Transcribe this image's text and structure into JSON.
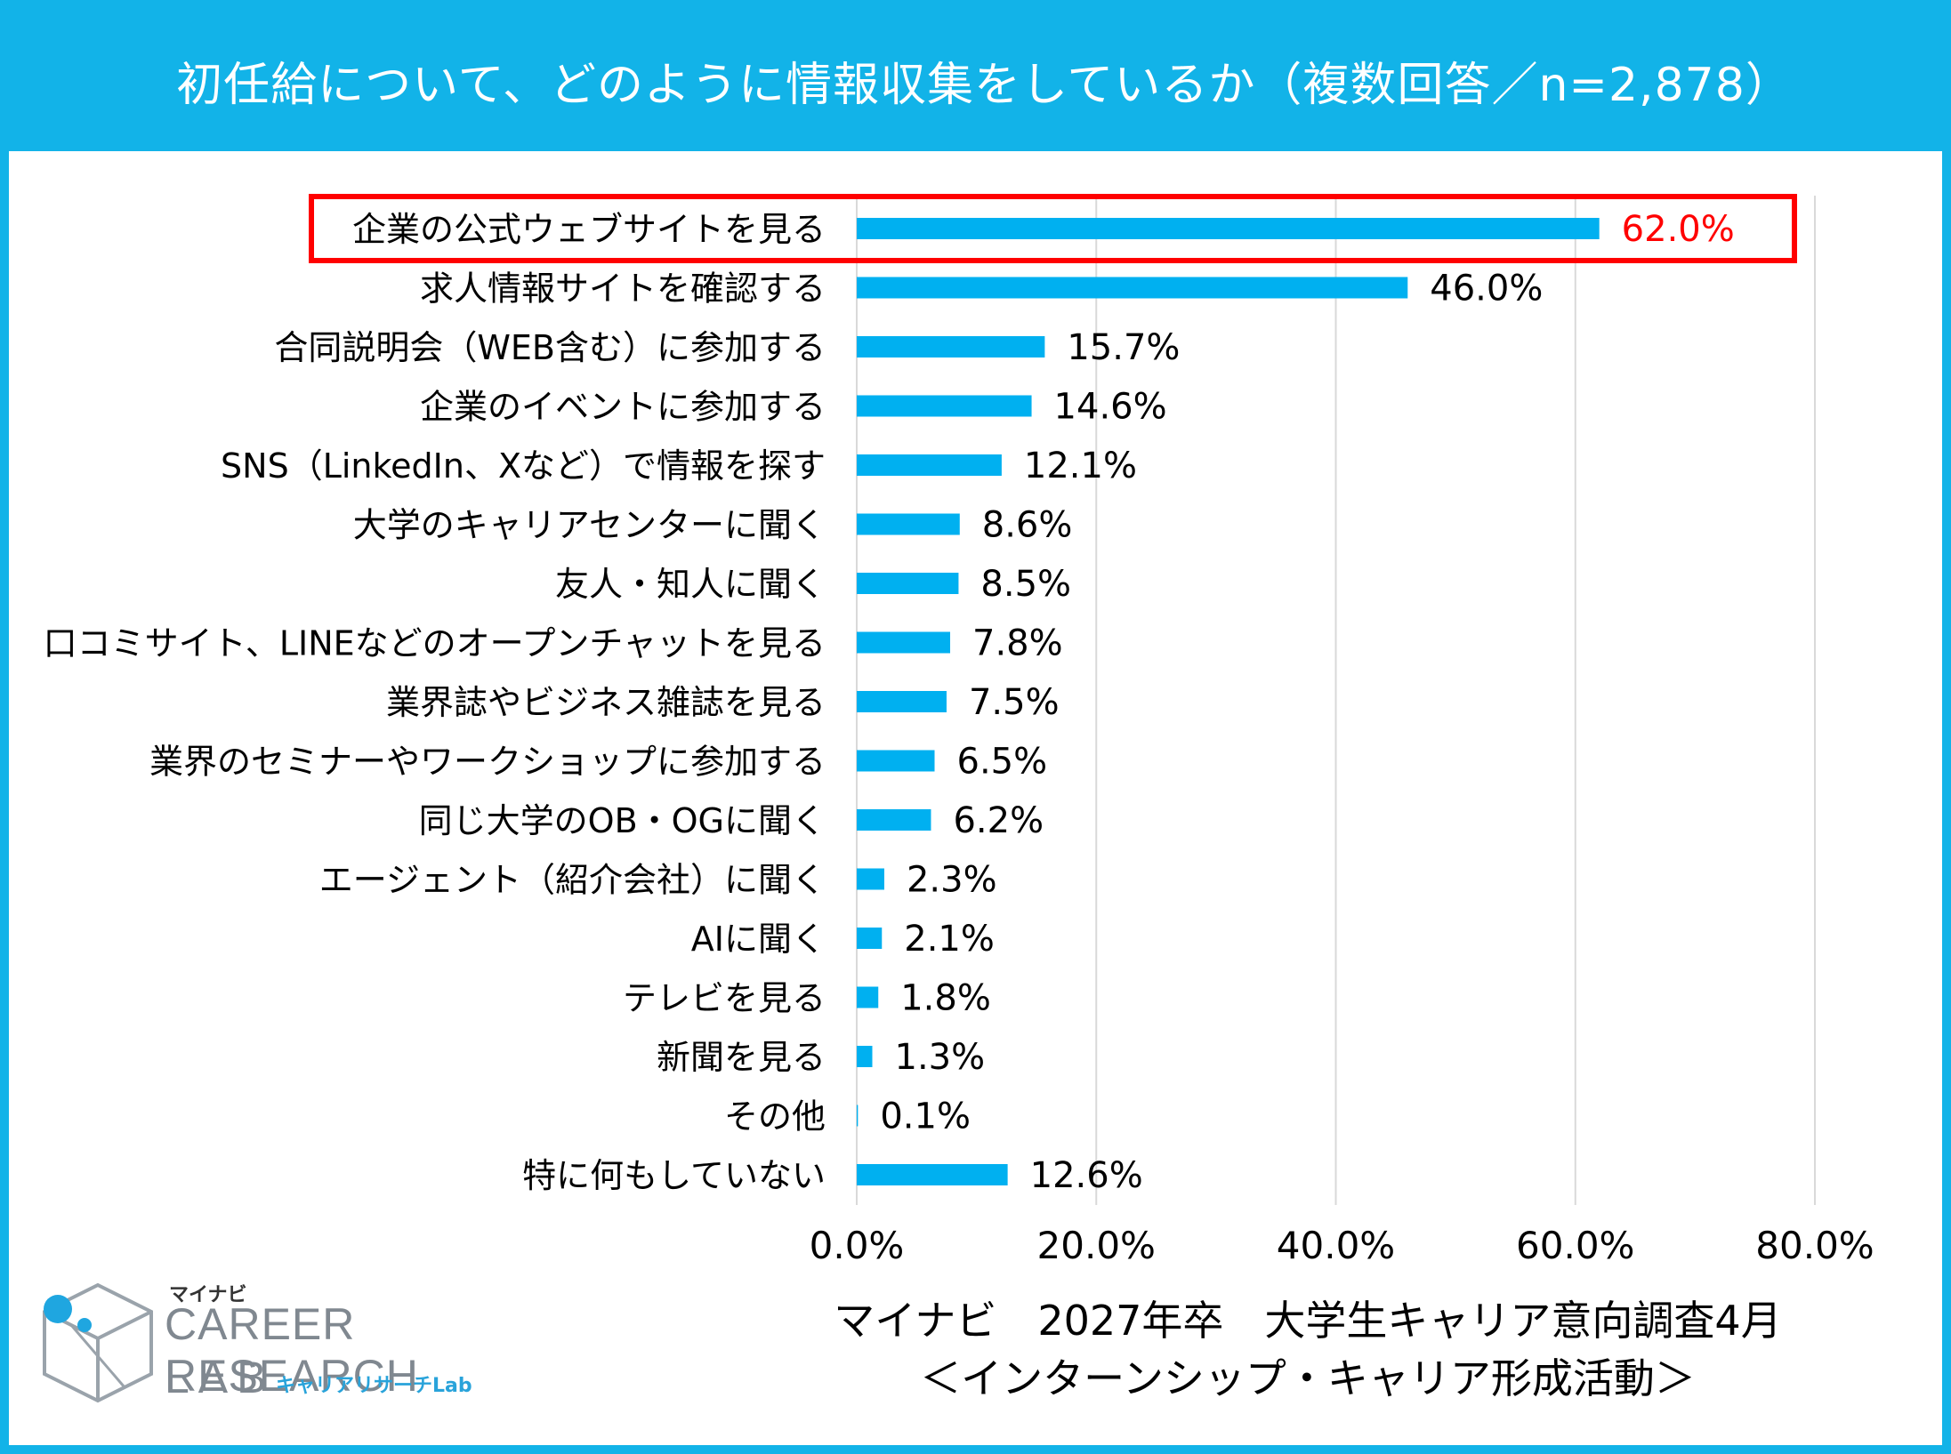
{
  "header": {
    "title": "初任給について、どのように情報収集をしているか（複数回答／n=2,878）"
  },
  "colors": {
    "frame": "#12b3e8",
    "bar": "#00b0f0",
    "highlight": "#ff0000",
    "grid": "#d9d9d9",
    "text": "#000000"
  },
  "chart_data": {
    "type": "bar",
    "orientation": "horizontal",
    "title": "初任給について、どのように情報収集をしているか（複数回答／n=2,878）",
    "categories": [
      "企業の公式ウェブサイトを見る",
      "求人情報サイトを確認する",
      "合同説明会（WEB含む）に参加する",
      "企業のイベントに参加する",
      "SNS（LinkedIn、Xなど）で情報を探す",
      "大学のキャリアセンターに聞く",
      "友人・知人に聞く",
      "口コミサイト、LINEなどのオープンチャットを見る",
      "業界誌やビジネス雑誌を見る",
      "業界のセミナーやワークショップに参加する",
      "同じ大学のOB・OGに聞く",
      "エージェント（紹介会社）に聞く",
      "AIに聞く",
      "テレビを見る",
      "新聞を見る",
      "その他",
      "特に何もしていない"
    ],
    "values": [
      62.0,
      46.0,
      15.7,
      14.6,
      12.1,
      8.6,
      8.5,
      7.8,
      7.5,
      6.5,
      6.2,
      2.3,
      2.1,
      1.8,
      1.3,
      0.1,
      12.6
    ],
    "value_labels": [
      "62.0%",
      "46.0%",
      "15.7%",
      "14.6%",
      "12.1%",
      "8.6%",
      "8.5%",
      "7.8%",
      "7.5%",
      "6.5%",
      "6.2%",
      "2.3%",
      "2.1%",
      "1.8%",
      "1.3%",
      "0.1%",
      "12.6%"
    ],
    "highlight_index": 0,
    "xlim": [
      0,
      80
    ],
    "x_ticks": [
      "0.0%",
      "20.0%",
      "40.0%",
      "60.0%",
      "80.0%"
    ],
    "grid": true,
    "legend": false
  },
  "footer": {
    "source_line1": "マイナビ　2027年卒　大学生キャリア意向調査4月",
    "source_line2": "＜インターンシップ・キャリア形成活動＞"
  },
  "logo": {
    "brand": "マイナビ",
    "main": "CAREER RESEARCH",
    "lab": "LAB",
    "sub": "キャリアリサーチLab"
  }
}
